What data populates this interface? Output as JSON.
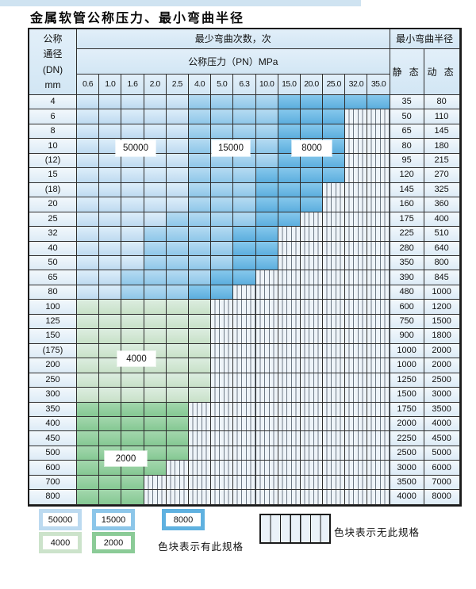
{
  "title": "金属软管公称压力、最小弯曲半径",
  "table": {
    "corner_header_lines": [
      "公称",
      "通径",
      "(DN)",
      "mm"
    ],
    "bend_cycles_header": "最少弯曲次数，次",
    "pressure_header": "公称压力（PN）MPa",
    "radius_header": "最小弯曲半径",
    "static_header": "静 态",
    "dynamic_header": "动 态",
    "pressures": [
      "0.6",
      "1.0",
      "1.6",
      "2.0",
      "2.5",
      "4.0",
      "5.0",
      "6.3",
      "10.0",
      "15.0",
      "20.0",
      "25.0",
      "32.0",
      "35.0"
    ],
    "rows": [
      {
        "dn": "4",
        "bands": [
          [
            "50000",
            5
          ],
          [
            "15000",
            4
          ],
          [
            "8000",
            5
          ]
        ],
        "static": "35",
        "dynamic": "80"
      },
      {
        "dn": "6",
        "bands": [
          [
            "50000",
            5
          ],
          [
            "15000",
            4
          ],
          [
            "8000",
            3
          ]
        ],
        "static": "50",
        "dynamic": "110"
      },
      {
        "dn": "8",
        "bands": [
          [
            "50000",
            5
          ],
          [
            "15000",
            4
          ],
          [
            "8000",
            3
          ]
        ],
        "static": "65",
        "dynamic": "145"
      },
      {
        "dn": "10",
        "bands": [
          [
            "50000",
            5
          ],
          [
            "15000",
            4
          ],
          [
            "8000",
            3
          ]
        ],
        "static": "80",
        "dynamic": "180"
      },
      {
        "dn": "(12)",
        "bands": [
          [
            "50000",
            5
          ],
          [
            "15000",
            4
          ],
          [
            "8000",
            3
          ]
        ],
        "static": "95",
        "dynamic": "215"
      },
      {
        "dn": "15",
        "bands": [
          [
            "50000",
            5
          ],
          [
            "15000",
            3
          ],
          [
            "8000",
            4
          ]
        ],
        "static": "120",
        "dynamic": "270"
      },
      {
        "dn": "(18)",
        "bands": [
          [
            "50000",
            5
          ],
          [
            "15000",
            3
          ],
          [
            "8000",
            3
          ]
        ],
        "static": "145",
        "dynamic": "325"
      },
      {
        "dn": "20",
        "bands": [
          [
            "50000",
            5
          ],
          [
            "15000",
            3
          ],
          [
            "8000",
            3
          ]
        ],
        "static": "160",
        "dynamic": "360"
      },
      {
        "dn": "25",
        "bands": [
          [
            "50000",
            4
          ],
          [
            "15000",
            4
          ],
          [
            "8000",
            2
          ]
        ],
        "static": "175",
        "dynamic": "400"
      },
      {
        "dn": "32",
        "bands": [
          [
            "50000",
            3
          ],
          [
            "15000",
            4
          ],
          [
            "8000",
            2
          ]
        ],
        "static": "225",
        "dynamic": "510"
      },
      {
        "dn": "40",
        "bands": [
          [
            "50000",
            3
          ],
          [
            "15000",
            4
          ],
          [
            "8000",
            2
          ]
        ],
        "static": "280",
        "dynamic": "640"
      },
      {
        "dn": "50",
        "bands": [
          [
            "50000",
            3
          ],
          [
            "15000",
            4
          ],
          [
            "8000",
            2
          ]
        ],
        "static": "350",
        "dynamic": "800"
      },
      {
        "dn": "65",
        "bands": [
          [
            "50000",
            2
          ],
          [
            "15000",
            4
          ],
          [
            "8000",
            2
          ]
        ],
        "static": "390",
        "dynamic": "845"
      },
      {
        "dn": "80",
        "bands": [
          [
            "50000",
            2
          ],
          [
            "15000",
            3
          ],
          [
            "8000",
            2
          ]
        ],
        "static": "480",
        "dynamic": "1000"
      },
      {
        "dn": "100",
        "bands": [
          [
            "4000",
            6
          ]
        ],
        "static": "600",
        "dynamic": "1200"
      },
      {
        "dn": "125",
        "bands": [
          [
            "4000",
            6
          ]
        ],
        "static": "750",
        "dynamic": "1500"
      },
      {
        "dn": "150",
        "bands": [
          [
            "4000",
            6
          ]
        ],
        "static": "900",
        "dynamic": "1800"
      },
      {
        "dn": "(175)",
        "bands": [
          [
            "4000",
            6
          ]
        ],
        "static": "1000",
        "dynamic": "2000"
      },
      {
        "dn": "200",
        "bands": [
          [
            "4000",
            6
          ]
        ],
        "static": "1000",
        "dynamic": "2000"
      },
      {
        "dn": "250",
        "bands": [
          [
            "4000",
            6
          ]
        ],
        "static": "1250",
        "dynamic": "2500"
      },
      {
        "dn": "300",
        "bands": [
          [
            "4000",
            6
          ]
        ],
        "static": "1500",
        "dynamic": "3000"
      },
      {
        "dn": "350",
        "bands": [
          [
            "2000",
            5
          ]
        ],
        "static": "1750",
        "dynamic": "3500"
      },
      {
        "dn": "400",
        "bands": [
          [
            "2000",
            5
          ]
        ],
        "static": "2000",
        "dynamic": "4000"
      },
      {
        "dn": "450",
        "bands": [
          [
            "2000",
            5
          ]
        ],
        "static": "2250",
        "dynamic": "4500"
      },
      {
        "dn": "500",
        "bands": [
          [
            "2000",
            5
          ]
        ],
        "static": "2500",
        "dynamic": "5000"
      },
      {
        "dn": "600",
        "bands": [
          [
            "2000",
            4
          ]
        ],
        "static": "3000",
        "dynamic": "6000"
      },
      {
        "dn": "700",
        "bands": [
          [
            "2000",
            3
          ]
        ],
        "static": "3500",
        "dynamic": "7000"
      },
      {
        "dn": "800",
        "bands": [
          [
            "2000",
            3
          ]
        ],
        "static": "4000",
        "dynamic": "8000"
      }
    ]
  },
  "cycles": {
    "v50000": "50000",
    "v15000": "15000",
    "v8000": "8000",
    "v4000": "4000",
    "v2000": "2000"
  },
  "legend": {
    "available_text": "色块表示有此规格",
    "unavailable_text": "色块表示无此规格"
  },
  "colors": {
    "band_50000": "#bedaf0",
    "band_15000": "#8fc7e9",
    "band_8000": "#5caede",
    "band_4000": "#c8e1c8",
    "band_2000": "#85c893",
    "no_spec_stripe_bg": "#eef4f9",
    "header_bg": "#d2e6f4",
    "grid_line": "#2e2e2e"
  }
}
